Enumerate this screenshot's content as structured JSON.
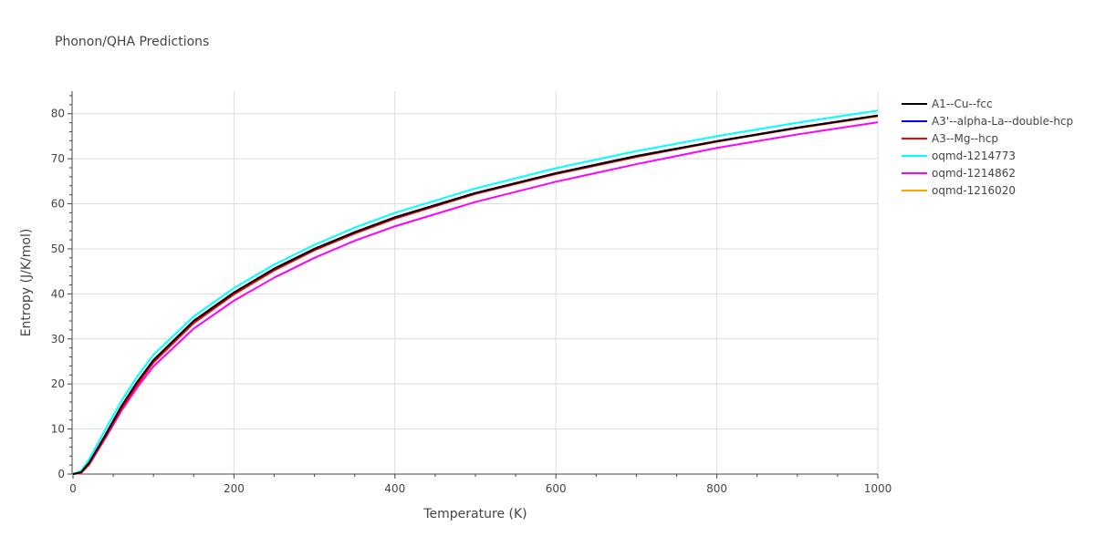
{
  "chart_data": {
    "type": "line",
    "title": "Phonon/QHA Predictions",
    "xlabel": "Temperature (K)",
    "ylabel": "Entropy (J/K/mol)",
    "xlim": [
      0,
      1000
    ],
    "ylim": [
      0,
      85
    ],
    "x_ticks": [
      0,
      200,
      400,
      600,
      800,
      1000
    ],
    "y_ticks": [
      0,
      10,
      20,
      30,
      40,
      50,
      60,
      70,
      80
    ],
    "grid": true,
    "legend_position": "top-right",
    "x": [
      0,
      10,
      20,
      40,
      60,
      80,
      100,
      150,
      200,
      250,
      300,
      350,
      400,
      500,
      600,
      700,
      800,
      900,
      1000
    ],
    "series": [
      {
        "name": "A1--Cu--fcc",
        "color": "#000000",
        "values": [
          0,
          0.4,
          2.5,
          8.6,
          15.0,
          20.5,
          25.3,
          34.0,
          40.3,
          45.6,
          50.0,
          53.7,
          57.0,
          62.4,
          66.8,
          70.6,
          73.9,
          76.9,
          79.6
        ]
      },
      {
        "name": "A3'--alpha-La--double-hcp",
        "color": "#0000ff",
        "values": [
          0,
          0.4,
          2.5,
          8.6,
          15.0,
          20.5,
          25.3,
          34.0,
          40.3,
          45.6,
          50.0,
          53.7,
          57.0,
          62.4,
          66.8,
          70.6,
          73.9,
          76.9,
          79.6
        ]
      },
      {
        "name": "A3--Mg--hcp",
        "color": "#ff0000",
        "values": [
          0,
          0.3,
          2.2,
          8.1,
          14.4,
          19.9,
          24.8,
          33.5,
          39.9,
          45.2,
          49.7,
          53.4,
          56.7,
          62.2,
          66.6,
          70.4,
          73.8,
          76.8,
          79.5
        ]
      },
      {
        "name": "oqmd-1214773",
        "color": "#00ffff",
        "values": [
          0,
          0.7,
          3.3,
          9.8,
          16.2,
          21.7,
          26.5,
          35.0,
          41.3,
          46.5,
          50.9,
          54.7,
          58.0,
          63.4,
          67.9,
          71.7,
          75.0,
          78.0,
          80.7
        ]
      },
      {
        "name": "oqmd-1214862",
        "color": "#ff00ff",
        "values": [
          0,
          0.3,
          2.1,
          7.9,
          14.0,
          19.3,
          23.9,
          32.3,
          38.5,
          43.6,
          48.0,
          51.8,
          55.0,
          60.4,
          64.9,
          68.8,
          72.4,
          75.4,
          78.1
        ]
      },
      {
        "name": "oqmd-1216020",
        "color": "#ffa500",
        "values": [
          0,
          0.2,
          2.0,
          8.0,
          14.4,
          19.9,
          24.8,
          33.6,
          40.0,
          45.3,
          49.8,
          53.5,
          56.8,
          62.3,
          66.7,
          70.5,
          73.8,
          76.8,
          79.4
        ]
      }
    ]
  }
}
